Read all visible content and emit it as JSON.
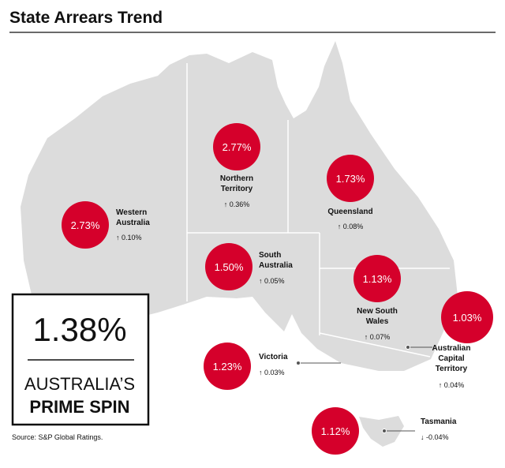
{
  "header": {
    "title": "State Arrears Trend"
  },
  "states": [
    {
      "name": [
        "Western",
        "Australia"
      ],
      "value": "2.73%",
      "change": "↑ 0.10%"
    },
    {
      "name": [
        "Northern",
        "Territory"
      ],
      "value": "2.77%",
      "change": "↑ 0.36%"
    },
    {
      "name": [
        "Queensland"
      ],
      "value": "1.73%",
      "change": "↑ 0.08%"
    },
    {
      "name": [
        "South",
        "Australia"
      ],
      "value": "1.50%",
      "change": "↑ 0.05%"
    },
    {
      "name": [
        "New South",
        "Wales"
      ],
      "value": "1.13%",
      "change": "↑ 0.07%"
    },
    {
      "name": [
        "Australian",
        "Capital",
        "Territory"
      ],
      "value": "1.03%",
      "change": "↑ 0.04%"
    },
    {
      "name": [
        "Victoria"
      ],
      "value": "1.23%",
      "change": "↑ 0.03%"
    },
    {
      "name": [
        "Tasmania"
      ],
      "value": "1.12%",
      "change": "↓ -0.04%"
    }
  ],
  "summary": {
    "value": "1.38%",
    "label": [
      "AUSTRALIA’S",
      "PRIME SPIN"
    ]
  },
  "source": "Source: S&P Global Ratings."
}
